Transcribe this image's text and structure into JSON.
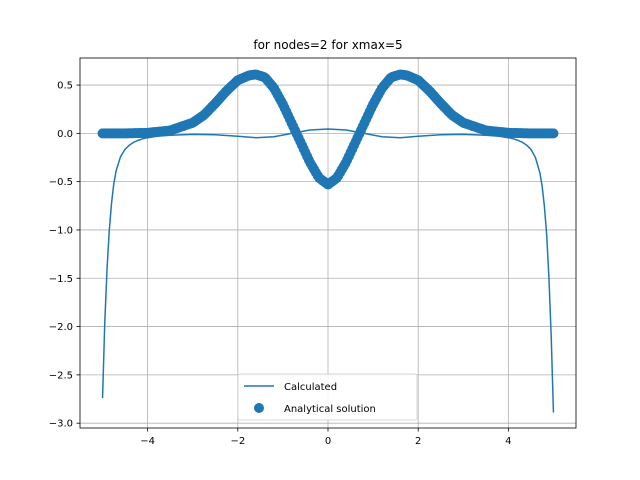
{
  "chart_data": {
    "type": "line",
    "title": "for nodes=2 for xmax=5",
    "xlabel": "",
    "ylabel": "",
    "xlim": [
      -5.5,
      5.5
    ],
    "ylim": [
      -3.05,
      0.78
    ],
    "xticks": [
      -4,
      -2,
      0,
      2,
      4
    ],
    "xtick_labels": [
      "−4",
      "−2",
      "0",
      "2",
      "4"
    ],
    "yticks": [
      0.5,
      0.0,
      -0.5,
      -1.0,
      -1.5,
      -2.0,
      -2.5,
      -3.0
    ],
    "ytick_labels": [
      "0.5",
      "0.0",
      "−0.5",
      "−1.0",
      "−1.5",
      "−2.0",
      "−2.5",
      "−3.0"
    ],
    "grid": true,
    "legend_position": "lower center",
    "color": "#1f77b4",
    "series": [
      {
        "name": "Calculated",
        "style": "line",
        "x": [
          -5.0,
          -4.95,
          -4.9,
          -4.85,
          -4.8,
          -4.75,
          -4.7,
          -4.6,
          -4.5,
          -4.4,
          -4.3,
          -4.2,
          -4.1,
          -4.0,
          -3.8,
          -3.5,
          -3.0,
          -2.5,
          -2.0,
          -1.6,
          -1.2,
          -0.8,
          -0.4,
          0.0,
          0.4,
          0.8,
          1.2,
          1.6,
          2.0,
          2.5,
          3.0,
          3.5,
          3.8,
          4.0,
          4.1,
          4.2,
          4.3,
          4.4,
          4.5,
          4.6,
          4.7,
          4.75,
          4.8,
          4.85,
          4.9,
          4.95,
          5.0
        ],
        "y": [
          -2.74,
          -1.95,
          -1.4,
          -1.0,
          -0.72,
          -0.52,
          -0.39,
          -0.24,
          -0.165,
          -0.12,
          -0.09,
          -0.07,
          -0.055,
          -0.045,
          -0.03,
          -0.02,
          -0.01,
          -0.015,
          -0.03,
          -0.045,
          -0.035,
          0.0,
          0.035,
          0.045,
          0.035,
          0.0,
          -0.035,
          -0.045,
          -0.03,
          -0.015,
          -0.01,
          -0.02,
          -0.03,
          -0.045,
          -0.055,
          -0.07,
          -0.09,
          -0.12,
          -0.165,
          -0.25,
          -0.41,
          -0.55,
          -0.76,
          -1.05,
          -1.5,
          -2.1,
          -2.89
        ]
      },
      {
        "name": "Analytical solution",
        "style": "scatter",
        "x": [
          -5.0,
          -4.5,
          -4.0,
          -3.5,
          -3.0,
          -2.75,
          -2.5,
          -2.25,
          -2.0,
          -1.75,
          -1.6,
          -1.4,
          -1.2,
          -1.0,
          -0.8,
          -0.6,
          -0.4,
          -0.2,
          0.0,
          0.2,
          0.4,
          0.6,
          0.8,
          1.0,
          1.2,
          1.4,
          1.6,
          1.75,
          2.0,
          2.25,
          2.5,
          2.75,
          3.0,
          3.5,
          4.0,
          4.5,
          5.0
        ],
        "y": [
          0.0,
          0.0,
          0.005,
          0.03,
          0.11,
          0.19,
          0.31,
          0.44,
          0.55,
          0.6,
          0.61,
          0.58,
          0.47,
          0.3,
          0.1,
          -0.1,
          -0.3,
          -0.46,
          -0.53,
          -0.46,
          -0.3,
          -0.1,
          0.1,
          0.3,
          0.47,
          0.58,
          0.61,
          0.6,
          0.55,
          0.44,
          0.31,
          0.19,
          0.11,
          0.03,
          0.005,
          0.0,
          0.0
        ]
      }
    ]
  }
}
